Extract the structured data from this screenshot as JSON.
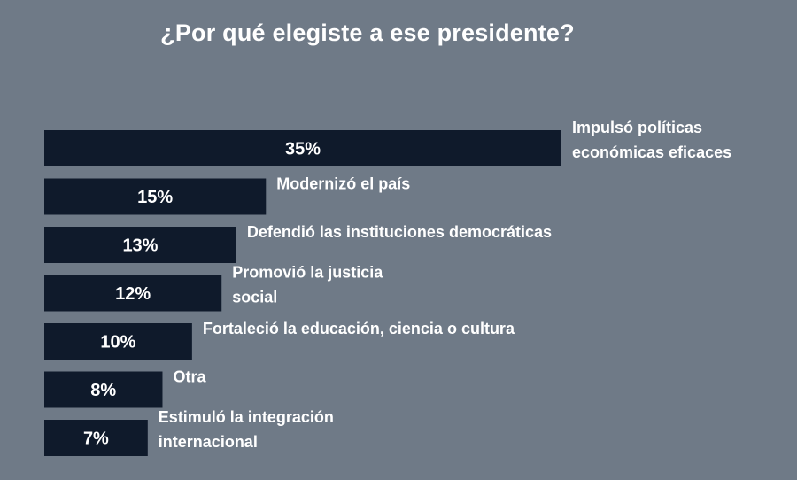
{
  "chart_data": {
    "type": "bar",
    "orientation": "horizontal",
    "title": "¿Por qué elegiste a ese presidente?",
    "categories": [
      [
        "Impulsó políticas",
        "económicas eficaces"
      ],
      [
        "Modernizó el país"
      ],
      [
        "Defendió las instituciones democráticas"
      ],
      [
        "Promovió la justicia",
        "social"
      ],
      [
        "Fortaleció la educación, ciencia o cultura"
      ],
      [
        "Otra"
      ],
      [
        "Estimuló la integración",
        "internacional"
      ]
    ],
    "values": [
      35,
      15,
      13,
      12,
      10,
      8,
      7
    ],
    "value_labels": [
      "35%",
      "15%",
      "13%",
      "12%",
      "10%",
      "8%",
      "7%"
    ],
    "unit": "%",
    "xlim": [
      0,
      35
    ],
    "grid": false,
    "legend": "none",
    "colors": {
      "background": "#6f7a87",
      "bar": "#0f1a2b",
      "text": "#ffffff"
    }
  }
}
